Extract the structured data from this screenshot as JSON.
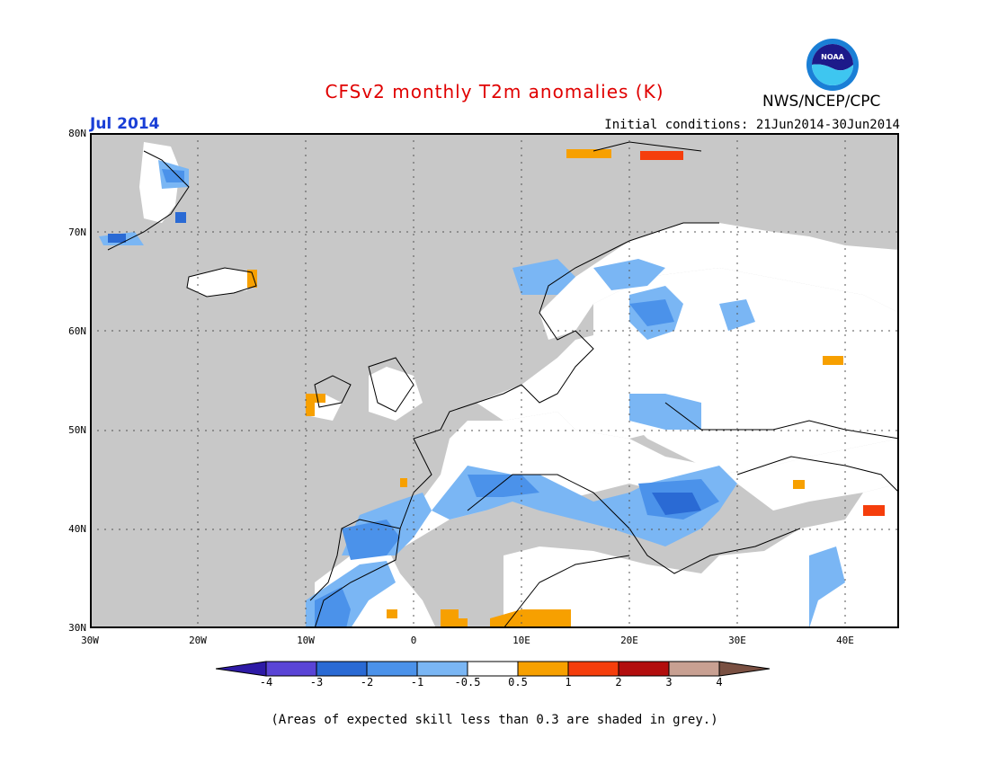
{
  "title": "CFSv2 monthly T2m anomalies (K)",
  "forecast_month": "Jul 2014",
  "initial_conditions": "Initial conditions: 21Jun2014-30Jun2014",
  "agency": "NWS/NCEP/CPC",
  "logo_text": "NOAA",
  "footnote": "(Areas of expected skill less than 0.3 are shaded in grey.)",
  "lat_labels": [
    "80N",
    "70N",
    "60N",
    "50N",
    "40N",
    "30N"
  ],
  "lon_labels": [
    "30W",
    "20W",
    "10W",
    "0",
    "10E",
    "20E",
    "30E",
    "40E"
  ],
  "colorbar": {
    "labels": [
      "-4",
      "-3",
      "-2",
      "-1",
      "-0.5",
      "0.5",
      "1",
      "2",
      "3",
      "4"
    ],
    "colors": [
      "#2e1aa6",
      "#5a44d6",
      "#2a6ad4",
      "#4b92ea",
      "#7ab6f4",
      "#ffffff",
      "#f7a000",
      "#f53e0c",
      "#b20d0d",
      "#c8a092",
      "#7a5042"
    ]
  },
  "colors": {
    "no_skill_grey": "#c8c8c8",
    "title": "#e00000",
    "month": "#1a3fd6"
  }
}
